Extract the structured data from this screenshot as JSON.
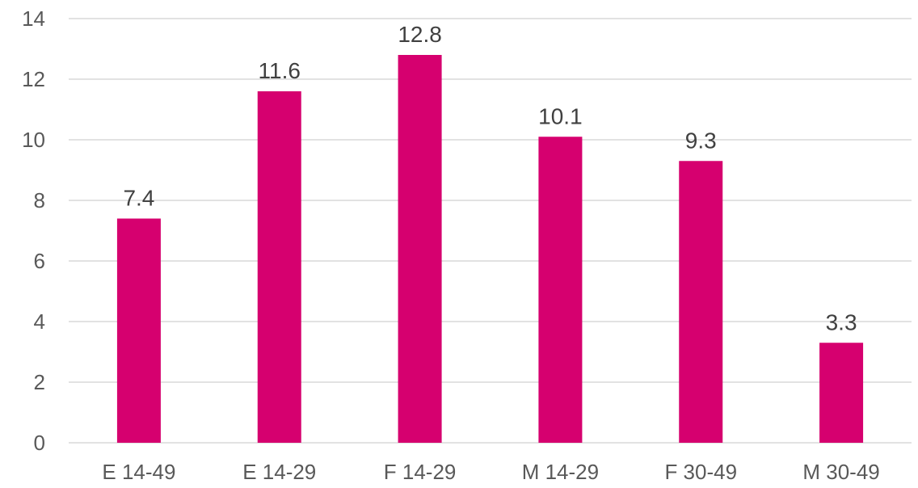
{
  "chart_data": {
    "type": "bar",
    "title": "",
    "xlabel": "",
    "ylabel": "",
    "categories": [
      "E 14-49",
      "E 14-29",
      "F 14-29",
      "M 14-29",
      "F 30-49",
      "M 30-49"
    ],
    "values": [
      7.4,
      11.6,
      12.8,
      10.1,
      9.3,
      3.3
    ],
    "value_labels": [
      "7.4",
      "11.6",
      "12.8",
      "10.1",
      "9.3",
      "3.3"
    ],
    "ylim": [
      0,
      14
    ],
    "yticks": [
      0,
      2,
      4,
      6,
      8,
      10,
      12,
      14
    ],
    "ytick_labels": [
      "0",
      "2",
      "4",
      "6",
      "8",
      "10",
      "12",
      "14"
    ],
    "grid": true,
    "legend": "none",
    "bar_color": "#D6006F"
  }
}
